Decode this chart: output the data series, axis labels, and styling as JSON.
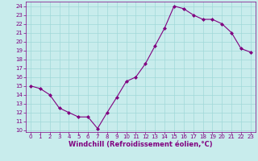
{
  "x": [
    0,
    1,
    2,
    3,
    4,
    5,
    6,
    7,
    8,
    9,
    10,
    11,
    12,
    13,
    14,
    15,
    16,
    17,
    18,
    19,
    20,
    21,
    22,
    23
  ],
  "y": [
    15.0,
    14.7,
    14.0,
    12.5,
    12.0,
    11.5,
    11.5,
    10.2,
    12.0,
    13.7,
    15.5,
    16.0,
    17.5,
    19.5,
    21.5,
    24.0,
    23.7,
    23.0,
    22.5,
    22.5,
    22.0,
    21.0,
    19.2,
    18.8
  ],
  "line_color": "#800080",
  "marker": "D",
  "marker_size": 2.0,
  "bg_color": "#c8ecec",
  "grid_color": "#a0d8d8",
  "xlabel": "Windchill (Refroidissement éolien,°C)",
  "ylim": [
    9.8,
    24.5
  ],
  "xlim": [
    -0.5,
    23.5
  ],
  "yticks": [
    10,
    11,
    12,
    13,
    14,
    15,
    16,
    17,
    18,
    19,
    20,
    21,
    22,
    23,
    24
  ],
  "xticks": [
    0,
    1,
    2,
    3,
    4,
    5,
    6,
    7,
    8,
    9,
    10,
    11,
    12,
    13,
    14,
    15,
    16,
    17,
    18,
    19,
    20,
    21,
    22,
    23
  ],
  "tick_color": "#800080",
  "label_color": "#800080",
  "axis_color": "#800080",
  "xlabel_fontsize": 6.0,
  "tick_fontsize": 5.0,
  "linewidth": 0.8
}
